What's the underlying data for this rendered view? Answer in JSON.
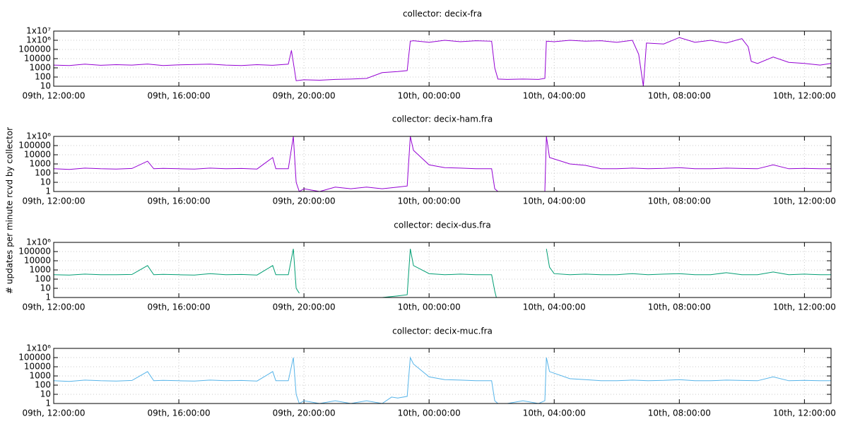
{
  "ylabel": "# updates per minute rcvd by collector",
  "chart_data": [
    {
      "type": "line",
      "title": "collector: decix-fra",
      "log_y": true,
      "grid": true,
      "xlim": [
        12,
        36.85
      ],
      "ylim": [
        10,
        10000000
      ],
      "xticks": [
        {
          "value": 12,
          "label": "09th, 12:00:00"
        },
        {
          "value": 16,
          "label": "09th, 16:00:00"
        },
        {
          "value": 20,
          "label": "09th, 20:00:00"
        },
        {
          "value": 24,
          "label": "10th, 00:00:00"
        },
        {
          "value": 28,
          "label": "10th, 04:00:00"
        },
        {
          "value": 32,
          "label": "10th, 08:00:00"
        },
        {
          "value": 36,
          "label": "10th, 12:00:00"
        }
      ],
      "yticks": [
        10,
        100,
        1000,
        10000,
        100000,
        {
          "value": 1000000,
          "label": "1x10⁶"
        },
        {
          "value": 10000000,
          "label": "1x10⁷"
        }
      ],
      "series": [
        {
          "color": "#9400d3",
          "x": [
            12,
            12.5,
            13,
            13.5,
            14,
            14.5,
            15,
            15.5,
            16,
            16.5,
            17,
            17.5,
            18,
            18.5,
            19,
            19.5,
            19.6,
            19.75,
            20,
            20.5,
            21,
            21.5,
            22,
            22.5,
            23,
            23.3,
            23.4,
            23.5,
            24,
            24.5,
            25,
            25.5,
            26,
            26.1,
            26.2,
            26.5,
            27,
            27.5,
            27.7,
            27.75,
            28,
            28.5,
            29,
            29.5,
            30,
            30.5,
            30.7,
            30.85,
            30.95,
            31.5,
            32,
            32.5,
            33,
            33.5,
            34,
            34.2,
            34.3,
            34.5,
            35,
            35.5,
            36,
            36.5,
            36.85
          ],
          "values": [
            2000,
            1800,
            2500,
            1900,
            2200,
            2000,
            2600,
            1800,
            2100,
            2300,
            2500,
            2000,
            1800,
            2200,
            1900,
            2500,
            80000,
            40,
            50,
            45,
            55,
            60,
            70,
            300,
            400,
            500,
            800000,
            900000,
            600000,
            1000000,
            700000,
            900000,
            800000,
            1000,
            60,
            55,
            60,
            55,
            70,
            800000,
            700000,
            1000000,
            800000,
            900000,
            600000,
            1000000,
            30000,
            10,
            500000,
            400000,
            2000000,
            600000,
            1000000,
            500000,
            1500000,
            200000,
            5000,
            3000,
            15000,
            4000,
            3000,
            2000,
            3000
          ]
        }
      ]
    },
    {
      "type": "line",
      "title": "collector: decix-ham.fra",
      "log_y": true,
      "grid": true,
      "xlim": [
        12,
        36.85
      ],
      "ylim": [
        1,
        1000000
      ],
      "xticks": [
        {
          "value": 12,
          "label": "09th, 12:00:00"
        },
        {
          "value": 16,
          "label": "09th, 16:00:00"
        },
        {
          "value": 20,
          "label": "09th, 20:00:00"
        },
        {
          "value": 24,
          "label": "10th, 00:00:00"
        },
        {
          "value": 28,
          "label": "10th, 04:00:00"
        },
        {
          "value": 32,
          "label": "10th, 08:00:00"
        },
        {
          "value": 36,
          "label": "10th, 12:00:00"
        }
      ],
      "yticks": [
        1,
        10,
        100,
        1000,
        10000,
        100000,
        {
          "value": 1000000,
          "label": "1x10⁶"
        }
      ],
      "series": [
        {
          "color": "#9400d3",
          "x": [
            12,
            12.5,
            13,
            13.5,
            14,
            14.5,
            15,
            15.2,
            15.5,
            16,
            16.5,
            17,
            17.5,
            18,
            18.5,
            19,
            19.1,
            19.5,
            19.66,
            19.75,
            19.85,
            20,
            20.5,
            21,
            21.5,
            22,
            22.5,
            23,
            23.3,
            23.4,
            23.5,
            24,
            24.5,
            25,
            25.5,
            26,
            26.1,
            26.2,
            26.5,
            27,
            27.5,
            27.7,
            27.75,
            27.85,
            28.5,
            29,
            29.5,
            30,
            30.5,
            31,
            31.5,
            32,
            32.5,
            33,
            33.5,
            34,
            34.5,
            35,
            35.5,
            36,
            36.5,
            36.85
          ],
          "values": [
            300,
            250,
            350,
            300,
            280,
            320,
            2000,
            300,
            330,
            300,
            280,
            350,
            300,
            320,
            280,
            5000,
            300,
            300,
            1000000,
            10,
            1,
            2,
            1,
            3,
            2,
            3,
            2,
            3,
            4,
            1000000,
            30000,
            800,
            400,
            350,
            300,
            300,
            2,
            1,
            1,
            1,
            1,
            1,
            1000000,
            5000,
            1000,
            700,
            300,
            300,
            350,
            300,
            330,
            400,
            300,
            300,
            350,
            320,
            300,
            800,
            300,
            330,
            300,
            300
          ]
        }
      ]
    },
    {
      "type": "line",
      "title": "collector: decix-dus.fra",
      "log_y": true,
      "grid": true,
      "xlim": [
        12,
        36.85
      ],
      "ylim": [
        1,
        1000000
      ],
      "xticks": [
        {
          "value": 12,
          "label": "09th, 12:00:00"
        },
        {
          "value": 16,
          "label": "09th, 16:00:00"
        },
        {
          "value": 20,
          "label": "09th, 20:00:00"
        },
        {
          "value": 24,
          "label": "10th, 00:00:00"
        },
        {
          "value": 28,
          "label": "10th, 04:00:00"
        },
        {
          "value": 32,
          "label": "10th, 08:00:00"
        },
        {
          "value": 36,
          "label": "10th, 12:00:00"
        }
      ],
      "yticks": [
        1,
        10,
        100,
        1000,
        10000,
        100000,
        {
          "value": 1000000,
          "label": "1x10⁶"
        }
      ],
      "series": [
        {
          "color": "#009e73",
          "x": [
            12,
            12.5,
            13,
            13.5,
            14,
            14.5,
            15,
            15.2,
            15.5,
            16,
            16.5,
            17,
            17.5,
            18,
            18.5,
            19,
            19.1,
            19.5,
            19.66,
            19.75,
            19.85,
            19.9,
            21.5,
            22,
            22.5,
            23,
            23.3,
            23.4,
            23.5,
            24,
            24.5,
            25,
            25.5,
            26,
            26.1,
            26.15,
            26.2,
            27.75,
            27.85,
            28,
            28.5,
            29,
            29.5,
            30,
            30.5,
            31,
            31.5,
            32,
            32.5,
            33,
            33.5,
            34,
            34.5,
            35,
            35.5,
            36,
            36.5,
            36.85
          ],
          "values": [
            300,
            280,
            350,
            300,
            300,
            320,
            3000,
            300,
            330,
            300,
            280,
            400,
            300,
            320,
            280,
            3000,
            300,
            300,
            200000,
            10,
            3,
            null,
            1,
            1,
            1,
            1.5,
            2,
            200000,
            3000,
            400,
            300,
            350,
            300,
            300,
            5,
            1,
            null,
            200000,
            2000,
            400,
            300,
            350,
            300,
            300,
            400,
            300,
            350,
            400,
            300,
            300,
            500,
            300,
            300,
            600,
            300,
            350,
            300,
            300
          ]
        }
      ]
    },
    {
      "type": "line",
      "title": "collector: decix-muc.fra",
      "log_y": true,
      "grid": true,
      "xlim": [
        12,
        36.85
      ],
      "ylim": [
        1,
        1000000
      ],
      "xticks": [
        {
          "value": 12,
          "label": "09th, 12:00:00"
        },
        {
          "value": 16,
          "label": "09th, 16:00:00"
        },
        {
          "value": 20,
          "label": "09th, 20:00:00"
        },
        {
          "value": 24,
          "label": "10th, 00:00:00"
        },
        {
          "value": 28,
          "label": "10th, 04:00:00"
        },
        {
          "value": 32,
          "label": "10th, 08:00:00"
        },
        {
          "value": 36,
          "label": "10th, 12:00:00"
        }
      ],
      "yticks": [
        1,
        10,
        100,
        1000,
        10000,
        100000,
        {
          "value": 1000000,
          "label": "1x10⁶"
        }
      ],
      "series": [
        {
          "color": "#56b4e9",
          "x": [
            12,
            12.5,
            13,
            13.5,
            14,
            14.5,
            15,
            15.2,
            15.5,
            16,
            16.5,
            17,
            17.5,
            18,
            18.5,
            19,
            19.1,
            19.5,
            19.66,
            19.75,
            19.85,
            20,
            20.5,
            21,
            21.5,
            22,
            22.5,
            22.8,
            23,
            23.3,
            23.4,
            23.5,
            24,
            24.5,
            25,
            25.5,
            26,
            26.1,
            26.2,
            26.5,
            27,
            27.5,
            27.7,
            27.75,
            27.85,
            28.5,
            29,
            29.5,
            30,
            30.5,
            31,
            31.5,
            32,
            32.5,
            33,
            33.5,
            34,
            34.5,
            35,
            35.5,
            36,
            36.5,
            36.85
          ],
          "values": [
            300,
            250,
            350,
            300,
            280,
            320,
            3000,
            300,
            330,
            300,
            280,
            350,
            300,
            320,
            280,
            3000,
            300,
            300,
            100000,
            10,
            1,
            2,
            1,
            2,
            1,
            2,
            1,
            5,
            4,
            6,
            100000,
            20000,
            800,
            400,
            350,
            300,
            300,
            2,
            1,
            1,
            2,
            1,
            2,
            100000,
            3000,
            500,
            400,
            300,
            300,
            350,
            300,
            330,
            400,
            300,
            300,
            350,
            320,
            300,
            800,
            300,
            330,
            300,
            300
          ]
        }
      ]
    }
  ]
}
